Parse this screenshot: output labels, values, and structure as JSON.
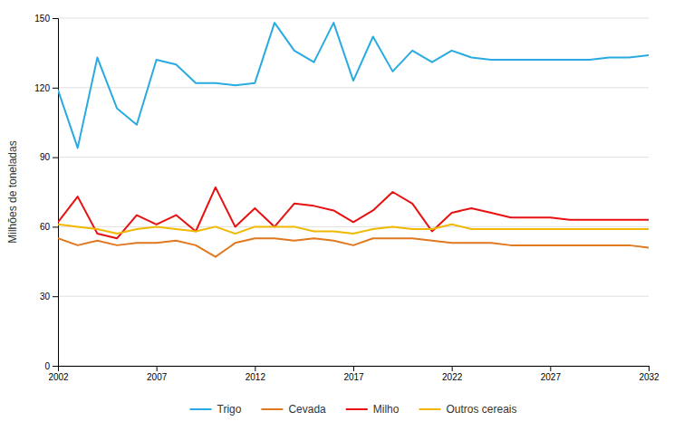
{
  "chart_data": {
    "type": "line",
    "ylabel": "Milhões de toneladas",
    "x": [
      2002,
      2003,
      2004,
      2005,
      2006,
      2007,
      2008,
      2009,
      2010,
      2011,
      2012,
      2013,
      2014,
      2015,
      2016,
      2017,
      2018,
      2019,
      2020,
      2021,
      2022,
      2023,
      2024,
      2025,
      2026,
      2027,
      2028,
      2029,
      2030,
      2031,
      2032
    ],
    "series": [
      {
        "name": "Trigo",
        "color": "#29ABE2",
        "values": [
          119,
          94,
          133,
          111,
          104,
          132,
          130,
          122,
          122,
          121,
          122,
          148,
          136,
          131,
          148,
          123,
          142,
          127,
          136,
          131,
          136,
          133,
          132,
          132,
          132,
          132,
          132,
          132,
          133,
          133,
          134
        ]
      },
      {
        "name": "Cevada",
        "color": "#E07820",
        "values": [
          55,
          52,
          54,
          52,
          53,
          53,
          54,
          52,
          47,
          53,
          55,
          55,
          54,
          55,
          54,
          52,
          55,
          55,
          55,
          54,
          53,
          53,
          53,
          52,
          52,
          52,
          52,
          52,
          52,
          52,
          51
        ]
      },
      {
        "name": "Milho",
        "color": "#E81010",
        "values": [
          62,
          73,
          57,
          55,
          65,
          61,
          65,
          58,
          77,
          60,
          68,
          60,
          70,
          69,
          67,
          62,
          67,
          75,
          70,
          58,
          66,
          68,
          66,
          64,
          64,
          64,
          63,
          63,
          63,
          63,
          63
        ]
      },
      {
        "name": "Outros cereais",
        "color": "#F0B800",
        "values": [
          61,
          60,
          59,
          57,
          59,
          60,
          59,
          58,
          60,
          57,
          60,
          60,
          60,
          58,
          58,
          57,
          59,
          60,
          59,
          59,
          61,
          59,
          59,
          59,
          59,
          59,
          59,
          59,
          59,
          59,
          59
        ]
      }
    ],
    "xlim": [
      2002,
      2032
    ],
    "xticks": [
      2002,
      2007,
      2012,
      2017,
      2022,
      2027,
      2032
    ],
    "ylim": [
      0,
      150
    ],
    "yticks": [
      0,
      30,
      60,
      90,
      120,
      150
    ],
    "grid": true,
    "legend": "bottom"
  }
}
